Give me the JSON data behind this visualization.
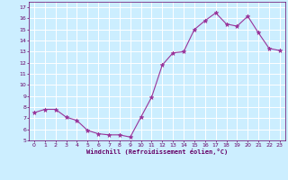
{
  "x": [
    0,
    1,
    2,
    3,
    4,
    5,
    6,
    7,
    8,
    9,
    10,
    11,
    12,
    13,
    14,
    15,
    16,
    17,
    18,
    19,
    20,
    21,
    22,
    23
  ],
  "y": [
    7.5,
    7.8,
    7.8,
    7.1,
    6.8,
    5.9,
    5.6,
    5.5,
    5.5,
    5.3,
    7.1,
    8.9,
    11.8,
    12.9,
    13.0,
    15.0,
    15.8,
    16.5,
    15.5,
    15.3,
    16.2,
    14.7,
    13.3,
    13.1
  ],
  "xlabel": "Windchill (Refroidissement éolien,°C)",
  "ylim": [
    5,
    17.5
  ],
  "xlim": [
    -0.5,
    23.5
  ],
  "yticks": [
    5,
    6,
    7,
    8,
    9,
    10,
    11,
    12,
    13,
    14,
    15,
    16,
    17
  ],
  "xticks": [
    0,
    1,
    2,
    3,
    4,
    5,
    6,
    7,
    8,
    9,
    10,
    11,
    12,
    13,
    14,
    15,
    16,
    17,
    18,
    19,
    20,
    21,
    22,
    23
  ],
  "line_color": "#993399",
  "marker_color": "#993399",
  "bg_color": "#cceeff",
  "grid_color": "#ffffff",
  "tick_color": "#660066",
  "label_color": "#660066",
  "spine_color": "#660066"
}
